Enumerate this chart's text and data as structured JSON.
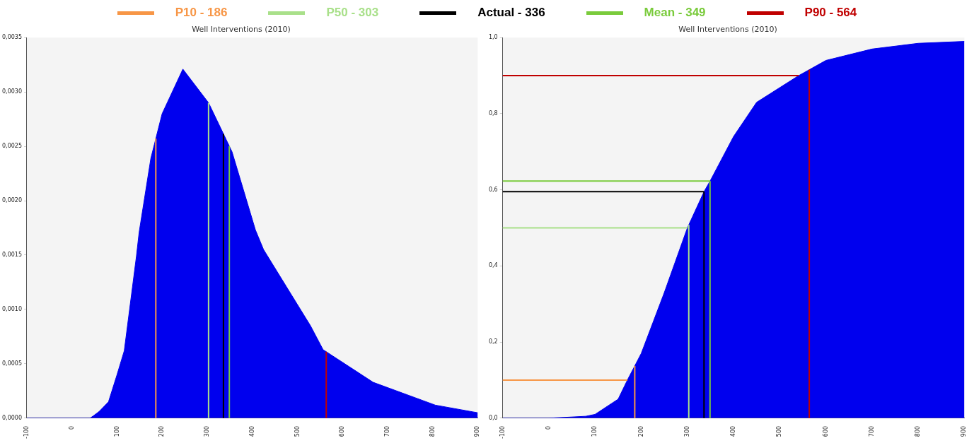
{
  "chart_data": [
    {
      "type": "area",
      "title": "Well Interventions (2010)",
      "x": [
        -100,
        40,
        47,
        60,
        81,
        100,
        116,
        143,
        149,
        175,
        200,
        246,
        303,
        355,
        407,
        425,
        529,
        557,
        668,
        806,
        900
      ],
      "series": [
        {
          "color": "#0000ee",
          "values": [
            0,
            0,
            2e-05,
            6e-05,
            0.00015,
            0.0004,
            0.00062,
            0.00149,
            0.00171,
            0.00239,
            0.0028,
            0.00321,
            0.0029,
            0.00245,
            0.00173,
            0.00155,
            0.00085,
            0.00063,
            0.00033,
            0.00012,
            5e-05
          ]
        }
      ],
      "xlim": [
        -100,
        900
      ],
      "xticks": [
        -100,
        0,
        100,
        200,
        300,
        400,
        500,
        600,
        700,
        800,
        900
      ],
      "ylim": [
        0,
        0.0035
      ],
      "yticks": [
        {
          "value": 0,
          "label": "0,0000"
        },
        {
          "value": 0.0005,
          "label": "0,0005"
        },
        {
          "value": 0.001,
          "label": "0,0010"
        },
        {
          "value": 0.0015,
          "label": "0,0015"
        },
        {
          "value": 0.002,
          "label": "0,0020"
        },
        {
          "value": 0.0025,
          "label": "0,0025"
        },
        {
          "value": 0.003,
          "label": "0,0030"
        },
        {
          "value": 0.0035,
          "label": "0,0035"
        }
      ],
      "grid": false,
      "legend": "top",
      "ref_lines": [
        {
          "axis": "x",
          "value": 186,
          "label": "P10 - 186",
          "color": "#f79646"
        },
        {
          "axis": "x",
          "value": 303,
          "label": "P50 - 303",
          "color": "#a9e08a"
        },
        {
          "axis": "x",
          "value": 336,
          "label": "Actual - 336",
          "color": "#000000"
        },
        {
          "axis": "x",
          "value": 349,
          "label": "Mean - 349",
          "color": "#7acb3c"
        },
        {
          "axis": "x",
          "value": 564,
          "label": "P90 - 564",
          "color": "#c00000"
        }
      ]
    },
    {
      "type": "area",
      "title": "Well Interventions (2010)",
      "x": [
        -100,
        0,
        80,
        100,
        150,
        170,
        200,
        250,
        300,
        336,
        350,
        400,
        450,
        541,
        600,
        700,
        800,
        900
      ],
      "series": [
        {
          "color": "#0000ee",
          "values": [
            0,
            0,
            0.005,
            0.01,
            0.05,
            0.1,
            0.17,
            0.33,
            0.5,
            0.595,
            0.625,
            0.74,
            0.83,
            0.9,
            0.94,
            0.97,
            0.985,
            0.99
          ]
        }
      ],
      "xlim": [
        -100,
        900
      ],
      "xticks": [
        -100,
        0,
        100,
        200,
        300,
        400,
        500,
        600,
        700,
        800,
        900
      ],
      "ylim": [
        0,
        1
      ],
      "yticks": [
        {
          "value": 0,
          "label": "0,0"
        },
        {
          "value": 0.2,
          "label": "0,2"
        },
        {
          "value": 0.4,
          "label": "0,4"
        },
        {
          "value": 0.6,
          "label": "0,6"
        },
        {
          "value": 0.8,
          "label": "0,8"
        },
        {
          "value": 1,
          "label": "1,0"
        }
      ],
      "grid": false,
      "ref_lines": [
        {
          "axis": "x",
          "value": 186,
          "color": "#f79646"
        },
        {
          "axis": "x",
          "value": 303,
          "color": "#a9e08a"
        },
        {
          "axis": "x",
          "value": 336,
          "color": "#000000"
        },
        {
          "axis": "x",
          "value": 349,
          "color": "#7acb3c"
        },
        {
          "axis": "x",
          "value": 564,
          "color": "#c00000"
        },
        {
          "axis": "y",
          "value": 0.1,
          "color": "#f79646"
        },
        {
          "axis": "y",
          "value": 0.5,
          "color": "#a9e08a"
        },
        {
          "axis": "y",
          "value": 0.595,
          "color": "#000000"
        },
        {
          "axis": "y",
          "value": 0.623,
          "color": "#7acb3c"
        },
        {
          "axis": "y",
          "value": 0.9,
          "color": "#c00000"
        }
      ]
    }
  ]
}
